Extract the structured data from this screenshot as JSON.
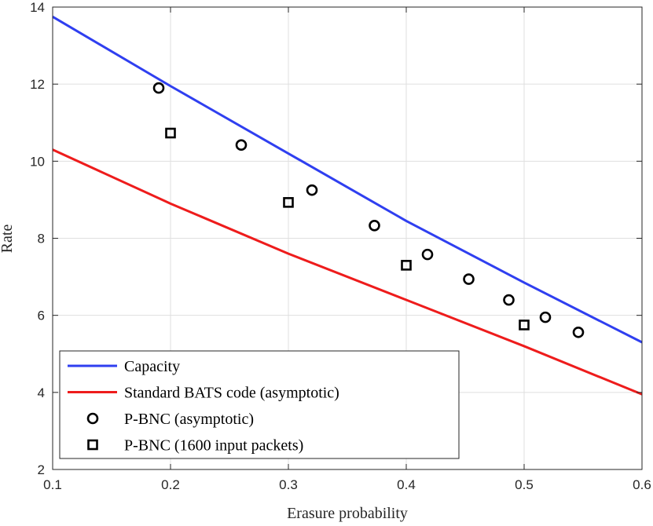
{
  "chart_data": {
    "type": "line",
    "title": "",
    "xlabel": "Erasure probability",
    "ylabel": "Rate",
    "xlim": [
      0.1,
      0.6
    ],
    "ylim": [
      2,
      14
    ],
    "xticks": [
      0.1,
      0.2,
      0.3,
      0.4,
      0.5,
      0.6
    ],
    "xtick_labels": [
      "0.1",
      "0.2",
      "0.3",
      "0.4",
      "0.5",
      "0.6"
    ],
    "yticks": [
      2,
      4,
      6,
      8,
      10,
      12,
      14
    ],
    "ytick_labels": [
      "2",
      "4",
      "6",
      "8",
      "10",
      "12",
      "14"
    ],
    "grid": true,
    "legend_position": "bottom-left",
    "series": [
      {
        "name": "Capacity",
        "kind": "line",
        "color": "#2f3ff0",
        "x": [
          0.1,
          0.2,
          0.3,
          0.4,
          0.5,
          0.6
        ],
        "y": [
          13.75,
          11.95,
          10.2,
          8.45,
          6.85,
          5.3
        ]
      },
      {
        "name": "Standard BATS code (asymptotic)",
        "kind": "line",
        "color": "#ee1c1c",
        "x": [
          0.1,
          0.2,
          0.3,
          0.4,
          0.5,
          0.6
        ],
        "y": [
          10.3,
          8.9,
          7.6,
          6.4,
          5.2,
          3.95
        ]
      },
      {
        "name": "P-BNC (asymptotic)",
        "kind": "scatter",
        "marker": "circle",
        "color": "#000000",
        "x": [
          0.19,
          0.26,
          0.32,
          0.373,
          0.418,
          0.453,
          0.487,
          0.518,
          0.546
        ],
        "y": [
          11.9,
          10.42,
          9.25,
          8.33,
          7.58,
          6.94,
          6.4,
          5.95,
          5.56
        ]
      },
      {
        "name": "P-BNC (1600 input packets)",
        "kind": "scatter",
        "marker": "square",
        "color": "#000000",
        "x": [
          0.2,
          0.3,
          0.4,
          0.5
        ],
        "y": [
          10.73,
          8.93,
          7.3,
          5.75
        ]
      }
    ]
  }
}
